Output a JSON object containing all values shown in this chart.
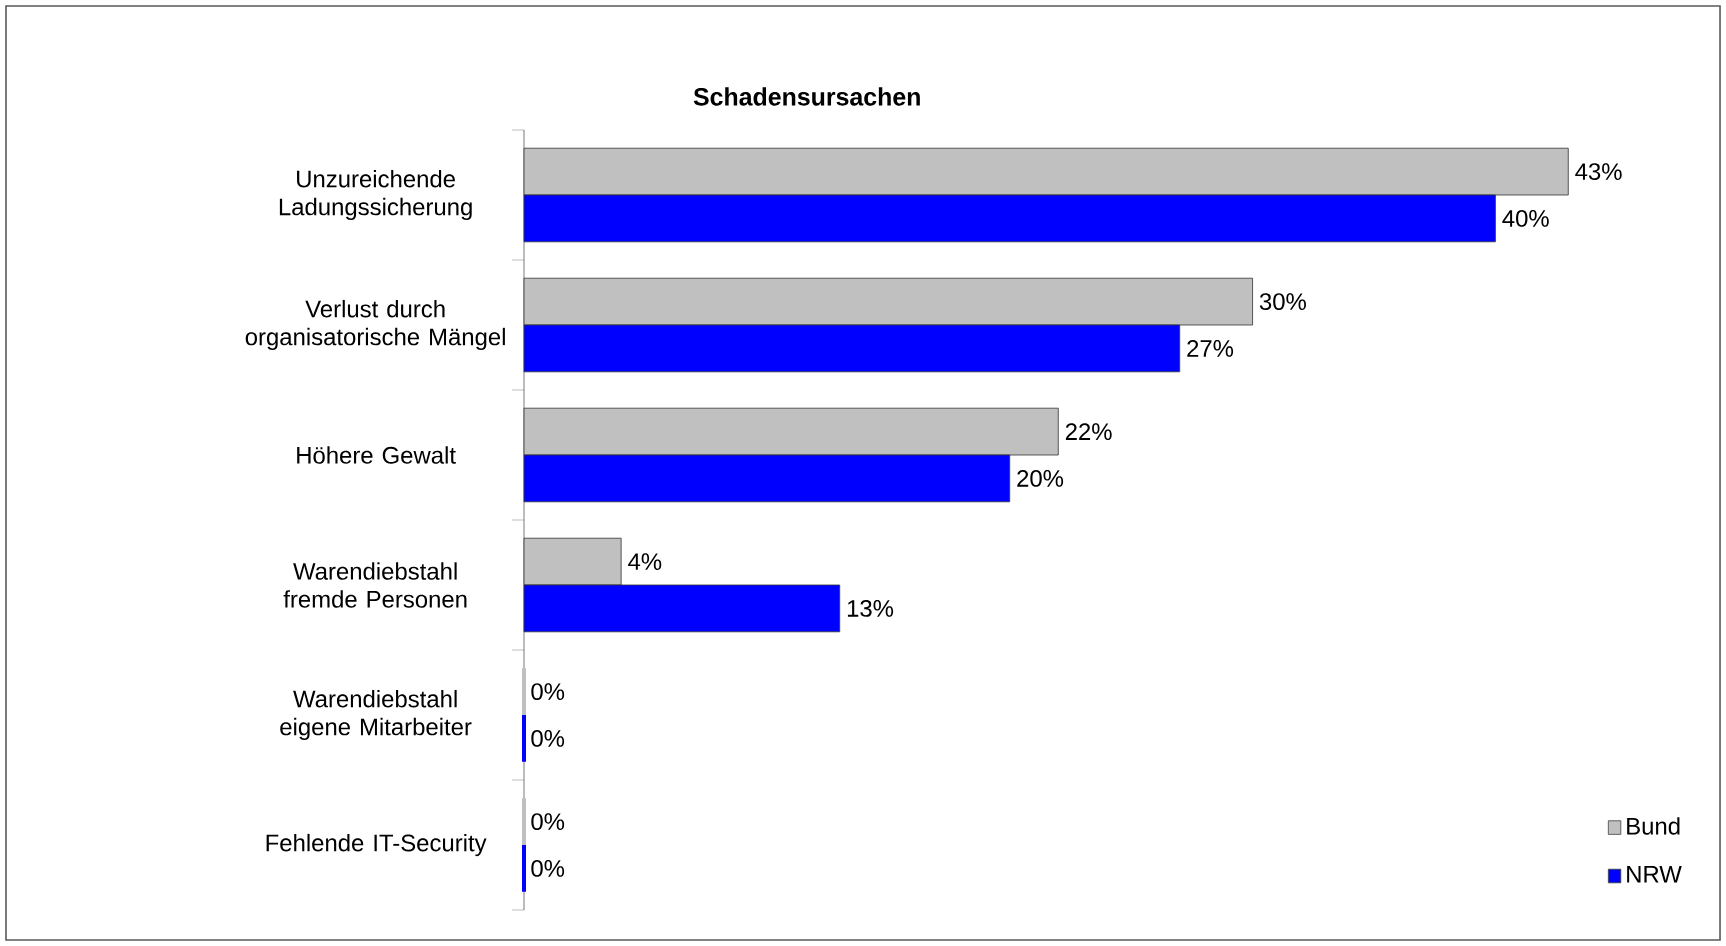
{
  "chart_data": {
    "type": "bar",
    "orientation": "horizontal",
    "title": "Schadensursachen",
    "categories": [
      "Unzureichende Ladungssicherung",
      "Verlust durch organisatorische Mängel",
      "Höhere Gewalt",
      "Warendiebstahl fremde Personen",
      "Warendiebstahl eigene Mitarbeiter",
      "Fehlende IT-Security"
    ],
    "series": [
      {
        "name": "Bund",
        "color": "#c0c0c0",
        "values": [
          43,
          30,
          22,
          4,
          0,
          0
        ],
        "value_labels": [
          "43%",
          "30%",
          "22%",
          "4%",
          "0%",
          "0%"
        ]
      },
      {
        "name": "NRW",
        "color": "#0000ff",
        "values": [
          40,
          27,
          20,
          13,
          0,
          0
        ],
        "value_labels": [
          "40%",
          "27%",
          "20%",
          "13%",
          "0%",
          "0%"
        ]
      }
    ],
    "legend": "bottom right"
  }
}
